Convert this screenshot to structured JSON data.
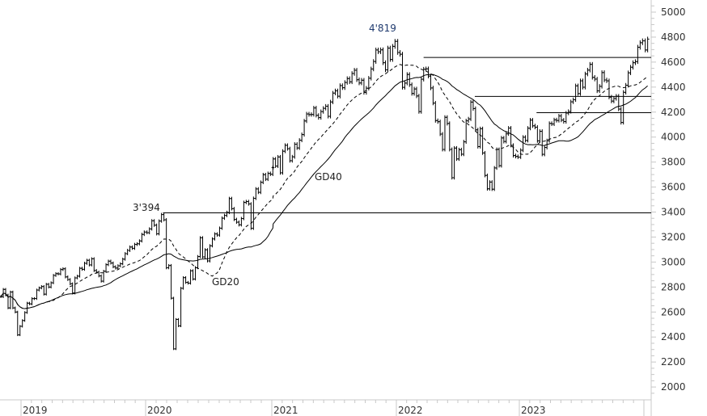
{
  "chart_data": {
    "type": "bar",
    "subtype": "weekly price bars with moving averages",
    "colors": {
      "bars": "#000000",
      "lines": "#000000",
      "axis": "#c8c8c8",
      "text": "#333333"
    },
    "y_axis": {
      "ticks": [
        2000,
        2200,
        2400,
        2600,
        2800,
        3000,
        3200,
        3400,
        3600,
        3800,
        4000,
        4200,
        4400,
        4600,
        4800,
        5000
      ],
      "ylim": [
        1900,
        5100
      ],
      "side": "right"
    },
    "x_axis": {
      "ticks": [
        "2019",
        "2020",
        "2021",
        "2022",
        "2023"
      ]
    },
    "weekly_close": {
      "2018": [
        2723,
        2781,
        2736,
        2633,
        2760,
        2633,
        2600,
        2417,
        2486
      ],
      "2019": [
        2532,
        2596,
        2671,
        2665,
        2707,
        2708,
        2776,
        2793,
        2804,
        2743,
        2822,
        2800,
        2834,
        2893,
        2907,
        2905,
        2940,
        2946,
        2881,
        2860,
        2826,
        2752,
        2873,
        2887,
        2950,
        2942,
        2990,
        3014,
        2977,
        3026,
        2932,
        2919,
        2889,
        2847,
        2926,
        2979,
        3007,
        2992,
        2962,
        2952,
        2970,
        2986,
        3023,
        3067,
        3093,
        3120,
        3110,
        3141,
        3146,
        3169,
        3221,
        3240
      ],
      "2020": [
        3235,
        3265,
        3330,
        3295,
        3226,
        3328,
        3380,
        3338,
        2954,
        2972,
        2711,
        2305,
        2541,
        2489,
        2790,
        2875,
        2837,
        2831,
        2930,
        2864,
        2955,
        3044,
        3194,
        3041,
        3098,
        3009,
        3130,
        3185,
        3225,
        3216,
        3271,
        3351,
        3373,
        3397,
        3508,
        3427,
        3341,
        3319,
        3298,
        3348,
        3477,
        3484,
        3465,
        3270,
        3510,
        3585,
        3558,
        3638,
        3699,
        3663,
        3709,
        3703,
        3756
      ],
      "2021": [
        3825,
        3768,
        3841,
        3714,
        3887,
        3934,
        3907,
        3811,
        3842,
        3943,
        3913,
        3975,
        4020,
        4129,
        4185,
        4180,
        4181,
        4233,
        4174,
        4156,
        4204,
        4230,
        4247,
        4166,
        4281,
        4352,
        4370,
        4327,
        4412,
        4395,
        4437,
        4468,
        4442,
        4509,
        4535,
        4459,
        4433,
        4455,
        4357,
        4391,
        4471,
        4545,
        4605,
        4697,
        4683,
        4698,
        4595,
        4538,
        4712,
        4621,
        4726,
        4766
      ],
      "2022": [
        4677,
        4663,
        4398,
        4432,
        4501,
        4419,
        4349,
        4385,
        4329,
        4204,
        4463,
        4543,
        4546,
        4488,
        4393,
        4272,
        4132,
        4123,
        4024,
        3901,
        4158,
        4109,
        3901,
        3675,
        3912,
        3825,
        3899,
        3863,
        3962,
        4130,
        4145,
        4280,
        4228,
        4058,
        3924,
        4067,
        3873,
        3693,
        3586,
        3640,
        3583,
        3753,
        3901,
        3771,
        3993,
        3965,
        4026,
        4072,
        3934,
        3852,
        3845,
        3840
      ],
      "2023": [
        3895,
        3999,
        3973,
        4071,
        4136,
        4090,
        4079,
        3970,
        4046,
        3862,
        3917,
        3971,
        4109,
        4105,
        4138,
        4133,
        4169,
        4136,
        4124,
        4192,
        4205,
        4282,
        4299,
        4410,
        4348,
        4450,
        4399,
        4505,
        4536,
        4582,
        4478,
        4464,
        4370,
        4406,
        4516,
        4457,
        4450,
        4320,
        4288,
        4309,
        4327,
        4224,
        4117,
        4358,
        4415,
        4514,
        4559,
        4595,
        4604,
        4719,
        4755,
        4770
      ],
      "2024": [
        4697,
        4784
      ]
    },
    "moving_averages": [
      {
        "name": "GD20",
        "period_weeks": 20,
        "style": "dashed"
      },
      {
        "name": "GD40",
        "period_weeks": 40,
        "style": "solid"
      }
    ],
    "horizontal_levels": [
      {
        "value": 3394,
        "from": "2020-02"
      },
      {
        "value": 4637,
        "from": "2022-03"
      },
      {
        "value": 4325,
        "from": "2022-08"
      },
      {
        "value": 4195,
        "from": "2023-02"
      }
    ],
    "annotations": {
      "peak_2020": "3'394",
      "peak_2022": "4'819",
      "gd40": "GD40",
      "gd20": "GD20"
    }
  }
}
